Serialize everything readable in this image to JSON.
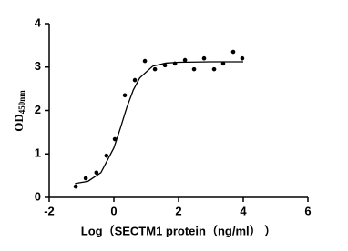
{
  "chart_data": {
    "type": "scatter",
    "x_label": "Log（SECTM1 protein（ng/ml） ）",
    "y_label": "OD",
    "y_label_subscript": "450nm",
    "color": "#000000",
    "x": [
      -1.18,
      -0.87,
      -0.54,
      -0.23,
      0.03,
      0.34,
      0.65,
      0.96,
      1.27,
      1.58,
      1.89,
      2.2,
      2.48,
      2.79,
      3.1,
      3.38,
      3.69,
      3.97
    ],
    "values": [
      0.25,
      0.44,
      0.57,
      0.96,
      1.34,
      2.35,
      2.7,
      3.14,
      2.95,
      3.04,
      3.08,
      3.16,
      2.95,
      3.2,
      2.95,
      3.08,
      3.35,
      3.2
    ],
    "fit": {
      "x": [
        -1.2,
        -0.8,
        -0.4,
        0,
        0.2,
        0.4,
        0.6,
        0.8,
        1.2,
        1.6,
        2,
        3,
        4
      ],
      "values": [
        0.32,
        0.37,
        0.57,
        1.14,
        1.59,
        2.07,
        2.47,
        2.75,
        3.02,
        3.09,
        3.11,
        3.12,
        3.12
      ]
    },
    "xlim": [
      -2,
      6
    ],
    "ylim": [
      0,
      4
    ],
    "xticks": [
      -2,
      0,
      2,
      4,
      6
    ],
    "yticks": [
      0,
      1,
      2,
      3,
      4
    ]
  }
}
